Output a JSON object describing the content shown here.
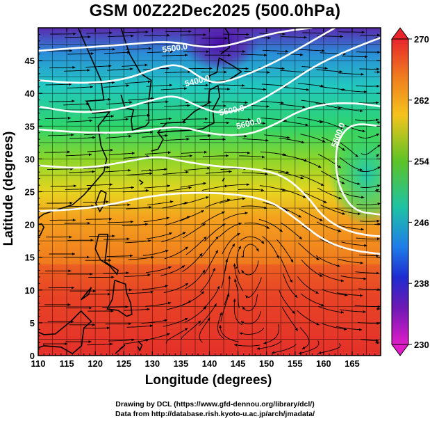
{
  "title": "GSM 00Z22Dec2025 (500.0hPa)",
  "xlabel": "Longitude (degrees)",
  "ylabel": "Latitude  (degrees)",
  "credits": [
    "Drawing by DCL (https://www.gfd-dennou.org/library/dcl/)",
    "Data from http://database.rish.kyoto-u.ac.jp/arch/jmadata/"
  ],
  "map_data": {
    "lon_range": [
      110,
      170
    ],
    "lat_range": [
      0,
      50
    ],
    "x_ticks": [
      "110",
      "115",
      "120",
      "125",
      "130",
      "135",
      "140",
      "145",
      "150",
      "155",
      "160",
      "165"
    ],
    "y_ticks": [
      "0",
      "5",
      "10",
      "15",
      "20",
      "25",
      "30",
      "35",
      "40",
      "45"
    ],
    "contour_labels": [
      "5500.0",
      "5400.0",
      "5500.0",
      "5600.0",
      "5600.0"
    ],
    "colorbar": {
      "labels": [
        "270",
        "262",
        "254",
        "246",
        "238",
        "230"
      ],
      "range": [
        230,
        270
      ],
      "colors": [
        "#e8242d",
        "#f07a1e",
        "#f4c41c",
        "#5cc326",
        "#1ec3a4",
        "#1e7de8",
        "#1e2bd0",
        "#6e19b4",
        "#e01cc8"
      ]
    }
  }
}
